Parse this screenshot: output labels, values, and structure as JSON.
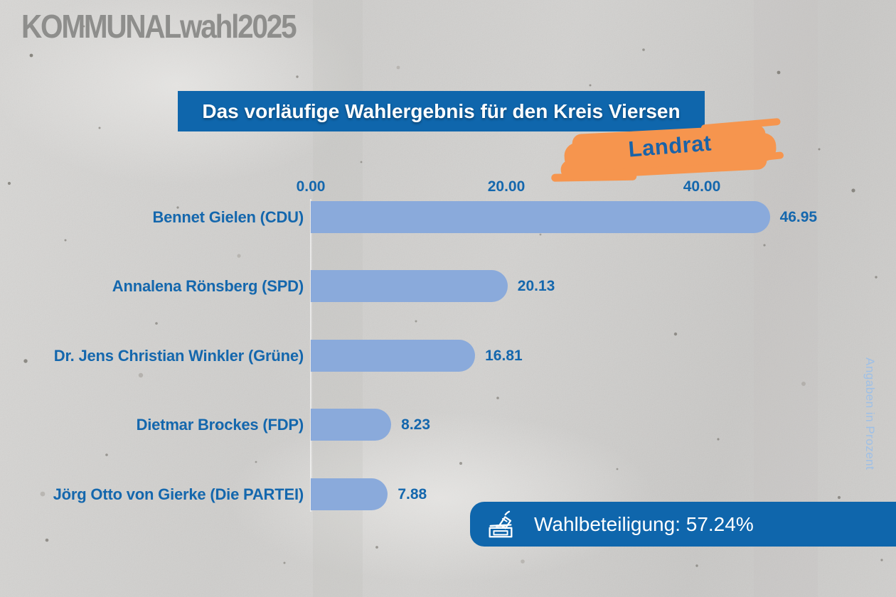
{
  "logo": {
    "text": "KOMMUNALwahl2025"
  },
  "title": {
    "text": "Das vorläufige Wahlergebnis für den Kreis Viersen"
  },
  "category_tag": {
    "text": "Landrat"
  },
  "turnout": {
    "text": "Wahlbeteiligung: 57.24%",
    "icon": "ballot-box-icon"
  },
  "colors": {
    "banner_blue": "#0f66ac",
    "bar_blue": "#8aaadb",
    "text_blue": "#1467ad",
    "accent_orange": "#f6954e",
    "logo_gray": "#8e8e8c",
    "background_gray": "#d2d1cf",
    "side_note_blue": "#9fc0e6"
  },
  "chart_data": {
    "type": "bar",
    "orientation": "horizontal",
    "title": "Das vorläufige Wahlergebnis für den Kreis Viersen",
    "subtitle": "Landrat",
    "unit_note": "Angaben in Prozent",
    "categories": [
      "Bennet Gielen (CDU)",
      "Annalena Rönsberg (SPD)",
      "Dr. Jens Christian Winkler (Grüne)",
      "Dietmar Brockes (FDP)",
      "Jörg Otto von Gierke (Die PARTEI)"
    ],
    "values": [
      46.95,
      20.13,
      16.81,
      8.23,
      7.88
    ],
    "value_labels": [
      "46.95",
      "20.13",
      "16.81",
      "8.23",
      "7.88"
    ],
    "x_ticks": {
      "labels": [
        "0.00",
        "20.00",
        "40.00"
      ],
      "values": [
        0,
        20,
        40
      ]
    },
    "xlim": [
      0,
      60
    ],
    "grid": false,
    "legend": "none"
  }
}
